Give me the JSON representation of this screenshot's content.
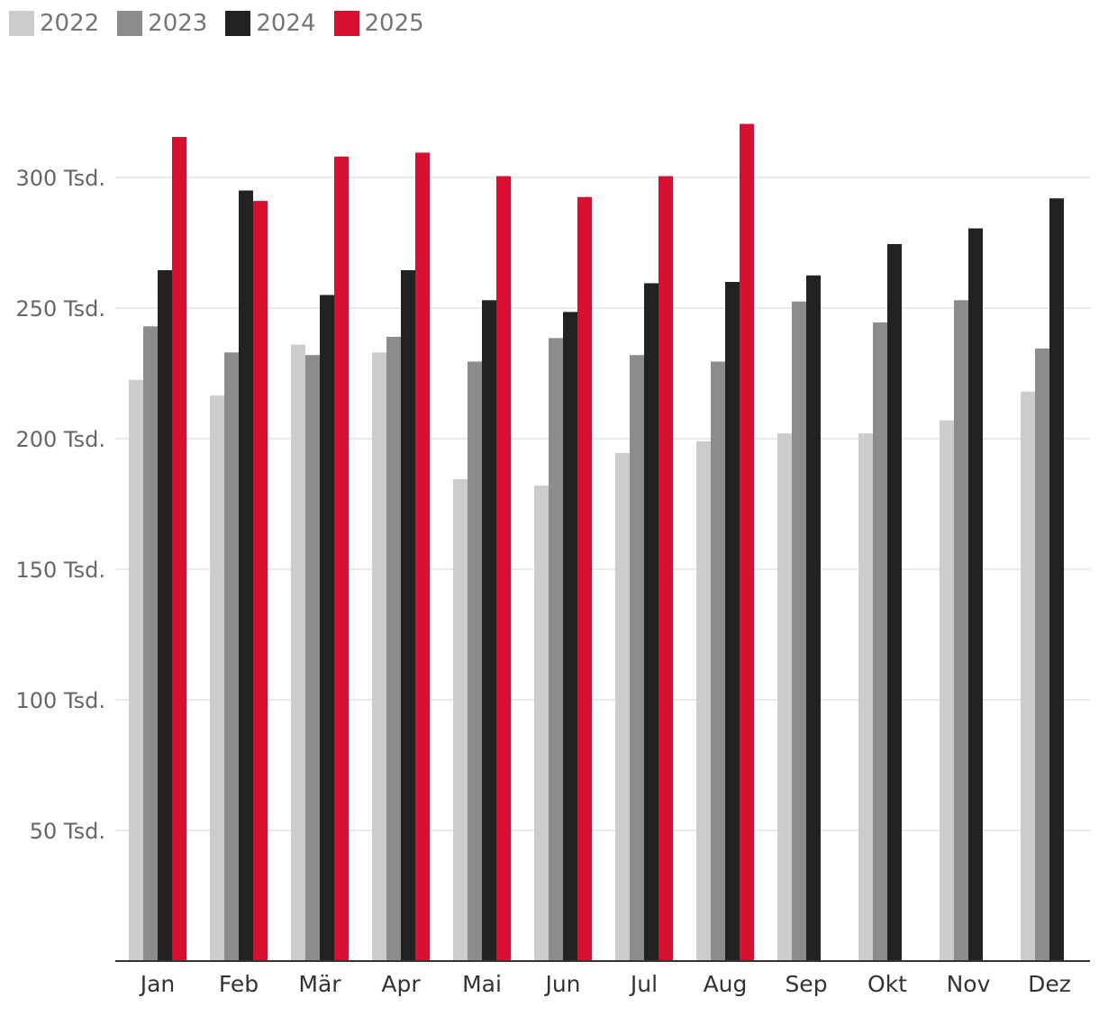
{
  "chart_data": {
    "type": "bar",
    "categories": [
      "Jan",
      "Feb",
      "Mär",
      "Apr",
      "Mai",
      "Jun",
      "Jul",
      "Aug",
      "Sep",
      "Okt",
      "Nov",
      "Dez"
    ],
    "series": [
      {
        "name": "2022",
        "color": "#cccccc",
        "values": [
          222500,
          216500,
          236000,
          233000,
          184500,
          182000,
          194500,
          199000,
          202000,
          202000,
          207000,
          218000
        ]
      },
      {
        "name": "2023",
        "color": "#8c8c8c",
        "values": [
          243000,
          233000,
          232000,
          239000,
          229500,
          238500,
          232000,
          229500,
          252500,
          244500,
          253000,
          234500
        ]
      },
      {
        "name": "2024",
        "color": "#222222",
        "values": [
          264500,
          295000,
          255000,
          264500,
          253000,
          248500,
          259500,
          260000,
          262500,
          274500,
          280500,
          292000
        ]
      },
      {
        "name": "2025",
        "color": "#d70f30",
        "values": [
          315500,
          291000,
          308000,
          309500,
          300500,
          292500,
          300500,
          320500,
          null,
          null,
          null,
          null
        ]
      }
    ],
    "yticks": [
      {
        "value": 50000,
        "label": "50 Tsd."
      },
      {
        "value": 100000,
        "label": "100 Tsd."
      },
      {
        "value": 150000,
        "label": "150 Tsd."
      },
      {
        "value": 200000,
        "label": "200 Tsd."
      },
      {
        "value": 250000,
        "label": "250 Tsd."
      },
      {
        "value": 300000,
        "label": "300 Tsd."
      }
    ],
    "ylim": [
      0,
      325000
    ],
    "grid": true,
    "legend_position": "top-left",
    "title": "",
    "xlabel": "",
    "ylabel": ""
  }
}
